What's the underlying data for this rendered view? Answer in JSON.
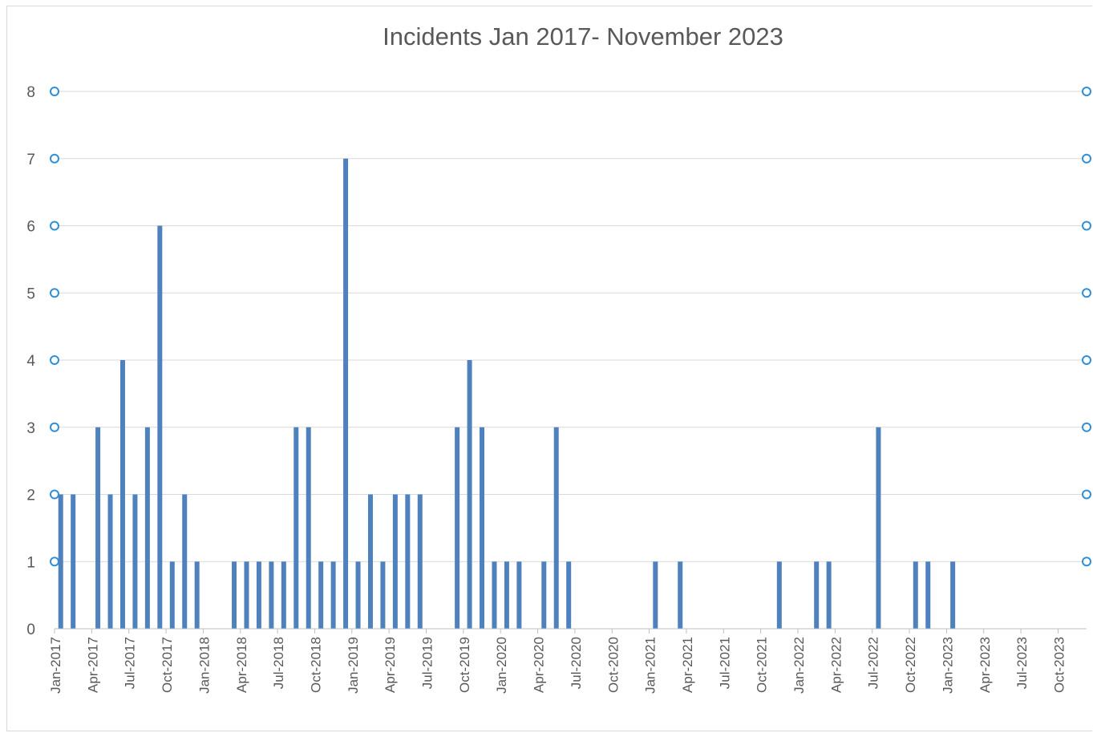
{
  "chart_data": {
    "type": "bar",
    "title": "Incidents Jan 2017- November 2023",
    "xlabel": "",
    "ylabel": "",
    "ylim": [
      0,
      8
    ],
    "y_ticks": [
      "0",
      "1",
      "2",
      "3",
      "4",
      "5",
      "6",
      "7",
      "8"
    ],
    "grid": true,
    "legend": "none",
    "x_tick_labels": [
      "Jan-2017",
      "Apr-2017",
      "Jul-2017",
      "Oct-2017",
      "Jan-2018",
      "Apr-2018",
      "Jul-2018",
      "Oct-2018",
      "Jan-2019",
      "Apr-2019",
      "Jul-2019",
      "Oct-2019",
      "Jan-2020",
      "Apr-2020",
      "Jul-2020",
      "Oct-2020",
      "Jan-2021",
      "Apr-2021",
      "Jul-2021",
      "Oct-2021",
      "Jan-2022",
      "Apr-2022",
      "Jul-2022",
      "Oct-2022",
      "Jan-2023",
      "Apr-2023",
      "Jul-2023",
      "Oct-2023"
    ],
    "categories": [
      "Jan-2017",
      "Feb-2017",
      "Mar-2017",
      "Apr-2017",
      "May-2017",
      "Jun-2017",
      "Jul-2017",
      "Aug-2017",
      "Sep-2017",
      "Oct-2017",
      "Nov-2017",
      "Dec-2017",
      "Jan-2018",
      "Feb-2018",
      "Mar-2018",
      "Apr-2018",
      "May-2018",
      "Jun-2018",
      "Jul-2018",
      "Aug-2018",
      "Sep-2018",
      "Oct-2018",
      "Nov-2018",
      "Dec-2018",
      "Jan-2019",
      "Feb-2019",
      "Mar-2019",
      "Apr-2019",
      "May-2019",
      "Jun-2019",
      "Jul-2019",
      "Aug-2019",
      "Sep-2019",
      "Oct-2019",
      "Nov-2019",
      "Dec-2019",
      "Jan-2020",
      "Feb-2020",
      "Mar-2020",
      "Apr-2020",
      "May-2020",
      "Jun-2020",
      "Jul-2020",
      "Aug-2020",
      "Sep-2020",
      "Oct-2020",
      "Nov-2020",
      "Dec-2020",
      "Jan-2021",
      "Feb-2021",
      "Mar-2021",
      "Apr-2021",
      "May-2021",
      "Jun-2021",
      "Jul-2021",
      "Aug-2021",
      "Sep-2021",
      "Oct-2021",
      "Nov-2021",
      "Dec-2021",
      "Jan-2022",
      "Feb-2022",
      "Mar-2022",
      "Apr-2022",
      "May-2022",
      "Jun-2022",
      "Jul-2022",
      "Aug-2022",
      "Sep-2022",
      "Oct-2022",
      "Nov-2022",
      "Dec-2022",
      "Jan-2023",
      "Feb-2023",
      "Mar-2023",
      "Apr-2023",
      "May-2023",
      "Jun-2023",
      "Jul-2023",
      "Aug-2023",
      "Sep-2023",
      "Oct-2023",
      "Nov-2023"
    ],
    "values": [
      2,
      2,
      0,
      3,
      2,
      4,
      2,
      3,
      6,
      1,
      2,
      1,
      0,
      0,
      1,
      1,
      1,
      1,
      1,
      3,
      3,
      1,
      1,
      7,
      1,
      2,
      1,
      2,
      2,
      2,
      0,
      0,
      3,
      4,
      3,
      1,
      1,
      1,
      0,
      1,
      3,
      1,
      0,
      0,
      0,
      0,
      0,
      0,
      1,
      0,
      1,
      0,
      0,
      0,
      0,
      0,
      0,
      0,
      1,
      0,
      0,
      1,
      1,
      0,
      0,
      0,
      3,
      0,
      0,
      1,
      1,
      0,
      1,
      0,
      0,
      0,
      0,
      0,
      0,
      0,
      0,
      0,
      0
    ],
    "colors": {
      "bar": "#4f81bd",
      "grid": "#d9d9d9",
      "axis": "#bfbfbf",
      "text": "#595959",
      "handle": "#2e8fd8"
    }
  }
}
